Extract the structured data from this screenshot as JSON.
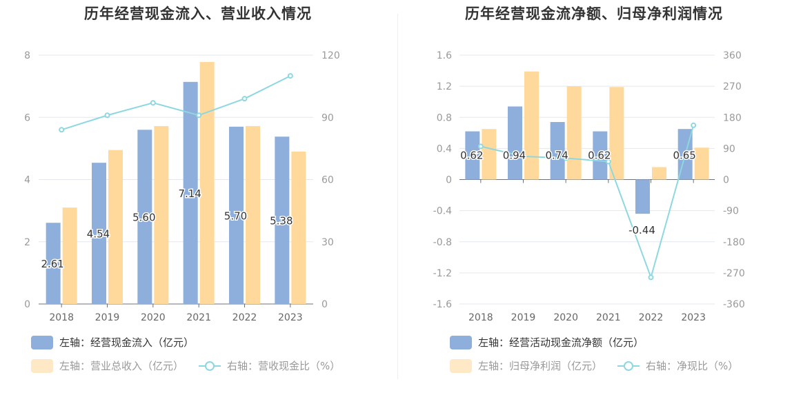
{
  "left": {
    "title": "历年经营现金流入、营业收入情况",
    "legend": {
      "bar1": "左轴：经营现金流入（亿元）",
      "bar2": "左轴：营业总收入（亿元）",
      "line": "右轴：营收现金比（%）"
    }
  },
  "right": {
    "title": "历年经营现金流净额、归母净利润情况",
    "legend": {
      "bar1": "左轴：经营活动现金流净额（亿元）",
      "bar2": "左轴：归母净利润（亿元）",
      "line": "右轴：净现比（%）"
    }
  },
  "colors": {
    "bar1": "#8eaedb",
    "bar2": "#ffd99b",
    "line": "#8dd8e0",
    "grid": "#e4e7ee",
    "axis_text": "#999999",
    "label_text": "#333333"
  },
  "chart_data": [
    {
      "type": "bar",
      "title": "历年经营现金流入、营业收入情况",
      "categories": [
        "2018",
        "2019",
        "2020",
        "2021",
        "2022",
        "2023"
      ],
      "left_axis": {
        "ylim": [
          0,
          8
        ],
        "ticks": [
          "0",
          "2",
          "4",
          "6",
          "8"
        ]
      },
      "right_axis": {
        "ylim": [
          0,
          120
        ],
        "ticks": [
          "0",
          "30",
          "60",
          "90",
          "120"
        ]
      },
      "series": [
        {
          "name": "左轴：经营现金流入（亿元）",
          "type": "bar",
          "axis": "left",
          "values": [
            2.61,
            4.54,
            5.6,
            7.14,
            5.7,
            5.38
          ],
          "labels": [
            "2.61",
            "4.54",
            "5.60",
            "7.14",
            "5.70",
            "5.38"
          ]
        },
        {
          "name": "左轴：营业总收入（亿元）",
          "type": "bar",
          "axis": "left",
          "values": [
            3.1,
            4.95,
            5.72,
            7.78,
            5.72,
            4.9
          ]
        },
        {
          "name": "右轴：营收现金比（%）",
          "type": "line",
          "axis": "right",
          "values": [
            84,
            91,
            97,
            91,
            99,
            110
          ]
        }
      ],
      "legend_position": "bottom-left",
      "grid": true
    },
    {
      "type": "bar",
      "title": "历年经营现金流净额、归母净利润情况",
      "categories": [
        "2018",
        "2019",
        "2020",
        "2021",
        "2022",
        "2023"
      ],
      "left_axis": {
        "ylim": [
          -1.6,
          1.6
        ],
        "ticks": [
          "-1.6",
          "-1.2",
          "-0.8",
          "-0.4",
          "0",
          "0.4",
          "0.8",
          "1.2",
          "1.6"
        ]
      },
      "right_axis": {
        "ylim": [
          -360,
          360
        ],
        "ticks": [
          "-360",
          "-270",
          "-180",
          "-90",
          "0",
          "90",
          "180",
          "270",
          "360"
        ]
      },
      "series": [
        {
          "name": "左轴：经营活动现金流净额（亿元）",
          "type": "bar",
          "axis": "left",
          "values": [
            0.62,
            0.94,
            0.74,
            0.62,
            -0.44,
            0.65
          ],
          "labels": [
            "0.62",
            "0.94",
            "0.74",
            "0.62",
            "-0.44",
            "0.65"
          ]
        },
        {
          "name": "左轴：归母净利润（亿元）",
          "type": "bar",
          "axis": "left",
          "values": [
            0.65,
            1.39,
            1.2,
            1.19,
            0.16,
            0.41
          ]
        },
        {
          "name": "右轴：净现比（%）",
          "type": "line",
          "axis": "right",
          "values": [
            96,
            67,
            62,
            52,
            -283,
            157
          ]
        }
      ],
      "legend_position": "bottom-left",
      "grid": true
    }
  ]
}
